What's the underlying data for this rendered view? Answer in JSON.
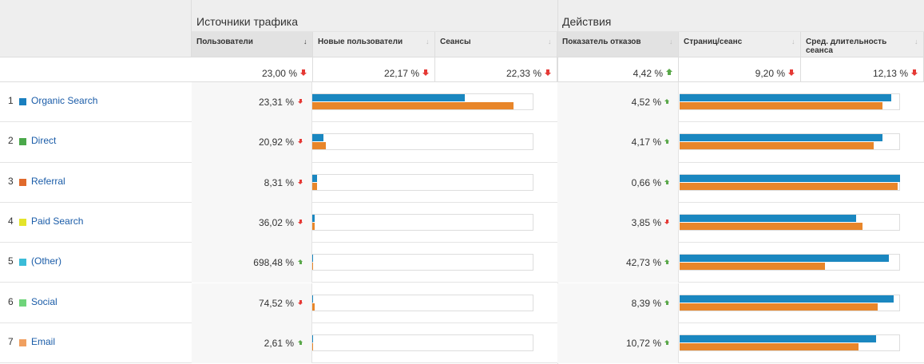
{
  "groups": [
    {
      "title": "Источники трафика"
    },
    {
      "title": "Действия"
    }
  ],
  "columns": [
    "Пользователи",
    "Новые пользователи",
    "Сеансы",
    "Показатель отказов",
    "Страниц/сеанс",
    "Сред. длительность сеанса"
  ],
  "totals": [
    {
      "label": "23,00 %",
      "trend": "down"
    },
    {
      "label": "22,17 %",
      "trend": "down"
    },
    {
      "label": "22,33 %",
      "trend": "down"
    },
    {
      "label": "4,42 %",
      "trend": "up"
    },
    {
      "label": "9,20 %",
      "trend": "down"
    },
    {
      "label": "12,13 %",
      "trend": "down"
    }
  ],
  "bar_colors": [
    "#1a87c0",
    "#e8862a"
  ],
  "trend_colors": {
    "up": "#5aa84a",
    "down": "#e53935"
  },
  "rows": [
    {
      "index": 1,
      "name": "Organic Search",
      "color": "#1a7fbf",
      "left": {
        "label": "23,31 %",
        "trend": "down",
        "bars": [
          69,
          91
        ]
      },
      "right": {
        "label": "4,52 %",
        "trend": "up",
        "bars": [
          96,
          92
        ]
      }
    },
    {
      "index": 2,
      "name": "Direct",
      "color": "#4aa84a",
      "left": {
        "label": "20,92 %",
        "trend": "down",
        "bars": [
          5,
          6
        ]
      },
      "right": {
        "label": "4,17 %",
        "trend": "up",
        "bars": [
          92,
          88
        ]
      }
    },
    {
      "index": 3,
      "name": "Referral",
      "color": "#e06a2c",
      "left": {
        "label": "8,31 %",
        "trend": "down",
        "bars": [
          2,
          2
        ]
      },
      "right": {
        "label": "0,66 %",
        "trend": "up",
        "bars": [
          100,
          99
        ]
      }
    },
    {
      "index": 4,
      "name": "Paid Search",
      "color": "#e4e42a",
      "left": {
        "label": "36,02 %",
        "trend": "down",
        "bars": [
          1,
          1
        ]
      },
      "right": {
        "label": "3,85 %",
        "trend": "down",
        "bars": [
          80,
          83
        ]
      }
    },
    {
      "index": 5,
      "name": "(Other)",
      "color": "#3bbcd8",
      "left": {
        "label": "698,48 %",
        "trend": "up",
        "bars": [
          0.4,
          0.4
        ]
      },
      "right": {
        "label": "42,73 %",
        "trend": "up",
        "bars": [
          95,
          66
        ]
      }
    },
    {
      "index": 6,
      "name": "Social",
      "color": "#6fd47a",
      "left": {
        "label": "74,52 %",
        "trend": "down",
        "bars": [
          0.5,
          1
        ]
      },
      "right": {
        "label": "8,39 %",
        "trend": "up",
        "bars": [
          97,
          90
        ]
      }
    },
    {
      "index": 7,
      "name": "Email",
      "color": "#f0a060",
      "left": {
        "label": "2,61 %",
        "trend": "up",
        "bars": [
          0.5,
          0.5
        ]
      },
      "right": {
        "label": "10,72 %",
        "trend": "up",
        "bars": [
          89,
          81
        ]
      }
    }
  ]
}
